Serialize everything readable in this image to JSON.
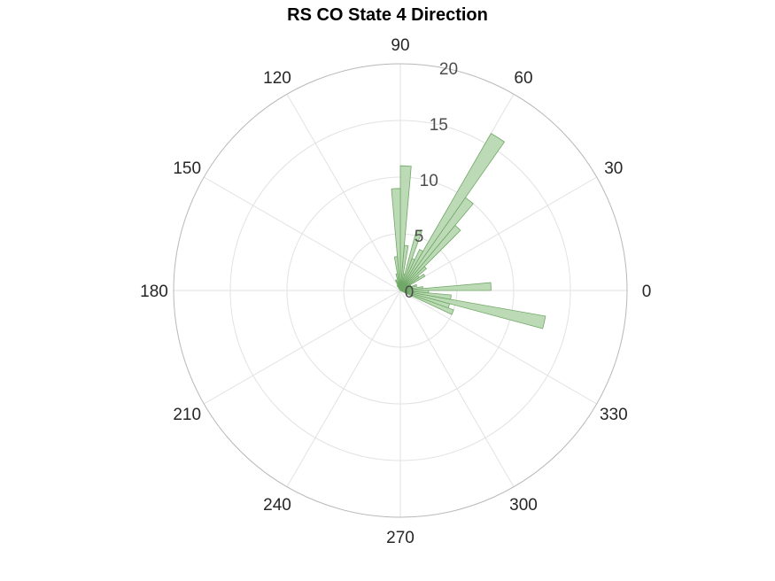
{
  "chart_data": {
    "type": "polar-histogram",
    "title": "RS  CO State 4 Direction",
    "theta_ticks": [
      "0",
      "30",
      "60",
      "90",
      "120",
      "150",
      "180",
      "210",
      "240",
      "270",
      "300",
      "330"
    ],
    "r_ticks": [
      "0",
      "5",
      "10",
      "15",
      "20"
    ],
    "rlim": [
      0,
      20
    ],
    "bin_width_deg": 5,
    "bins": [
      {
        "start": -25,
        "end": -20,
        "value": 5
      },
      {
        "start": -20,
        "end": -15,
        "value": 4.5
      },
      {
        "start": -15,
        "end": -10,
        "value": 13
      },
      {
        "start": -10,
        "end": -5,
        "value": 4.5
      },
      {
        "start": -5,
        "end": 0,
        "value": 2.5
      },
      {
        "start": 0,
        "end": 5,
        "value": 8
      },
      {
        "start": 5,
        "end": 10,
        "value": 2
      },
      {
        "start": 10,
        "end": 15,
        "value": 1
      },
      {
        "start": 15,
        "end": 20,
        "value": 1.5
      },
      {
        "start": 20,
        "end": 25,
        "value": 1
      },
      {
        "start": 25,
        "end": 30,
        "value": 1
      },
      {
        "start": 30,
        "end": 35,
        "value": 2.5
      },
      {
        "start": 35,
        "end": 40,
        "value": 2
      },
      {
        "start": 40,
        "end": 45,
        "value": 3
      },
      {
        "start": 45,
        "end": 50,
        "value": 7.5
      },
      {
        "start": 50,
        "end": 55,
        "value": 10
      },
      {
        "start": 55,
        "end": 60,
        "value": 16
      },
      {
        "start": 60,
        "end": 65,
        "value": 4
      },
      {
        "start": 65,
        "end": 70,
        "value": 3
      },
      {
        "start": 70,
        "end": 75,
        "value": 5.5
      },
      {
        "start": 75,
        "end": 80,
        "value": 1.5
      },
      {
        "start": 80,
        "end": 85,
        "value": 4
      },
      {
        "start": 85,
        "end": 90,
        "value": 11
      },
      {
        "start": 90,
        "end": 95,
        "value": 9
      },
      {
        "start": 95,
        "end": 100,
        "value": 3
      },
      {
        "start": 100,
        "end": 105,
        "value": 1.5
      },
      {
        "start": 105,
        "end": 110,
        "value": 0.5
      },
      {
        "start": 110,
        "end": 115,
        "value": 1
      },
      {
        "start": 115,
        "end": 120,
        "value": 0.5
      },
      {
        "start": 120,
        "end": 125,
        "value": 0.5
      }
    ],
    "grid": true,
    "colors": {
      "bar_fill": "#b9d8b2",
      "bar_stroke": "#6fa866",
      "grid": "#e2e2e2",
      "outer_ring": "#b8b8b8",
      "tick_text": "#262626",
      "r_tick_text": "#4d4d4d"
    }
  }
}
